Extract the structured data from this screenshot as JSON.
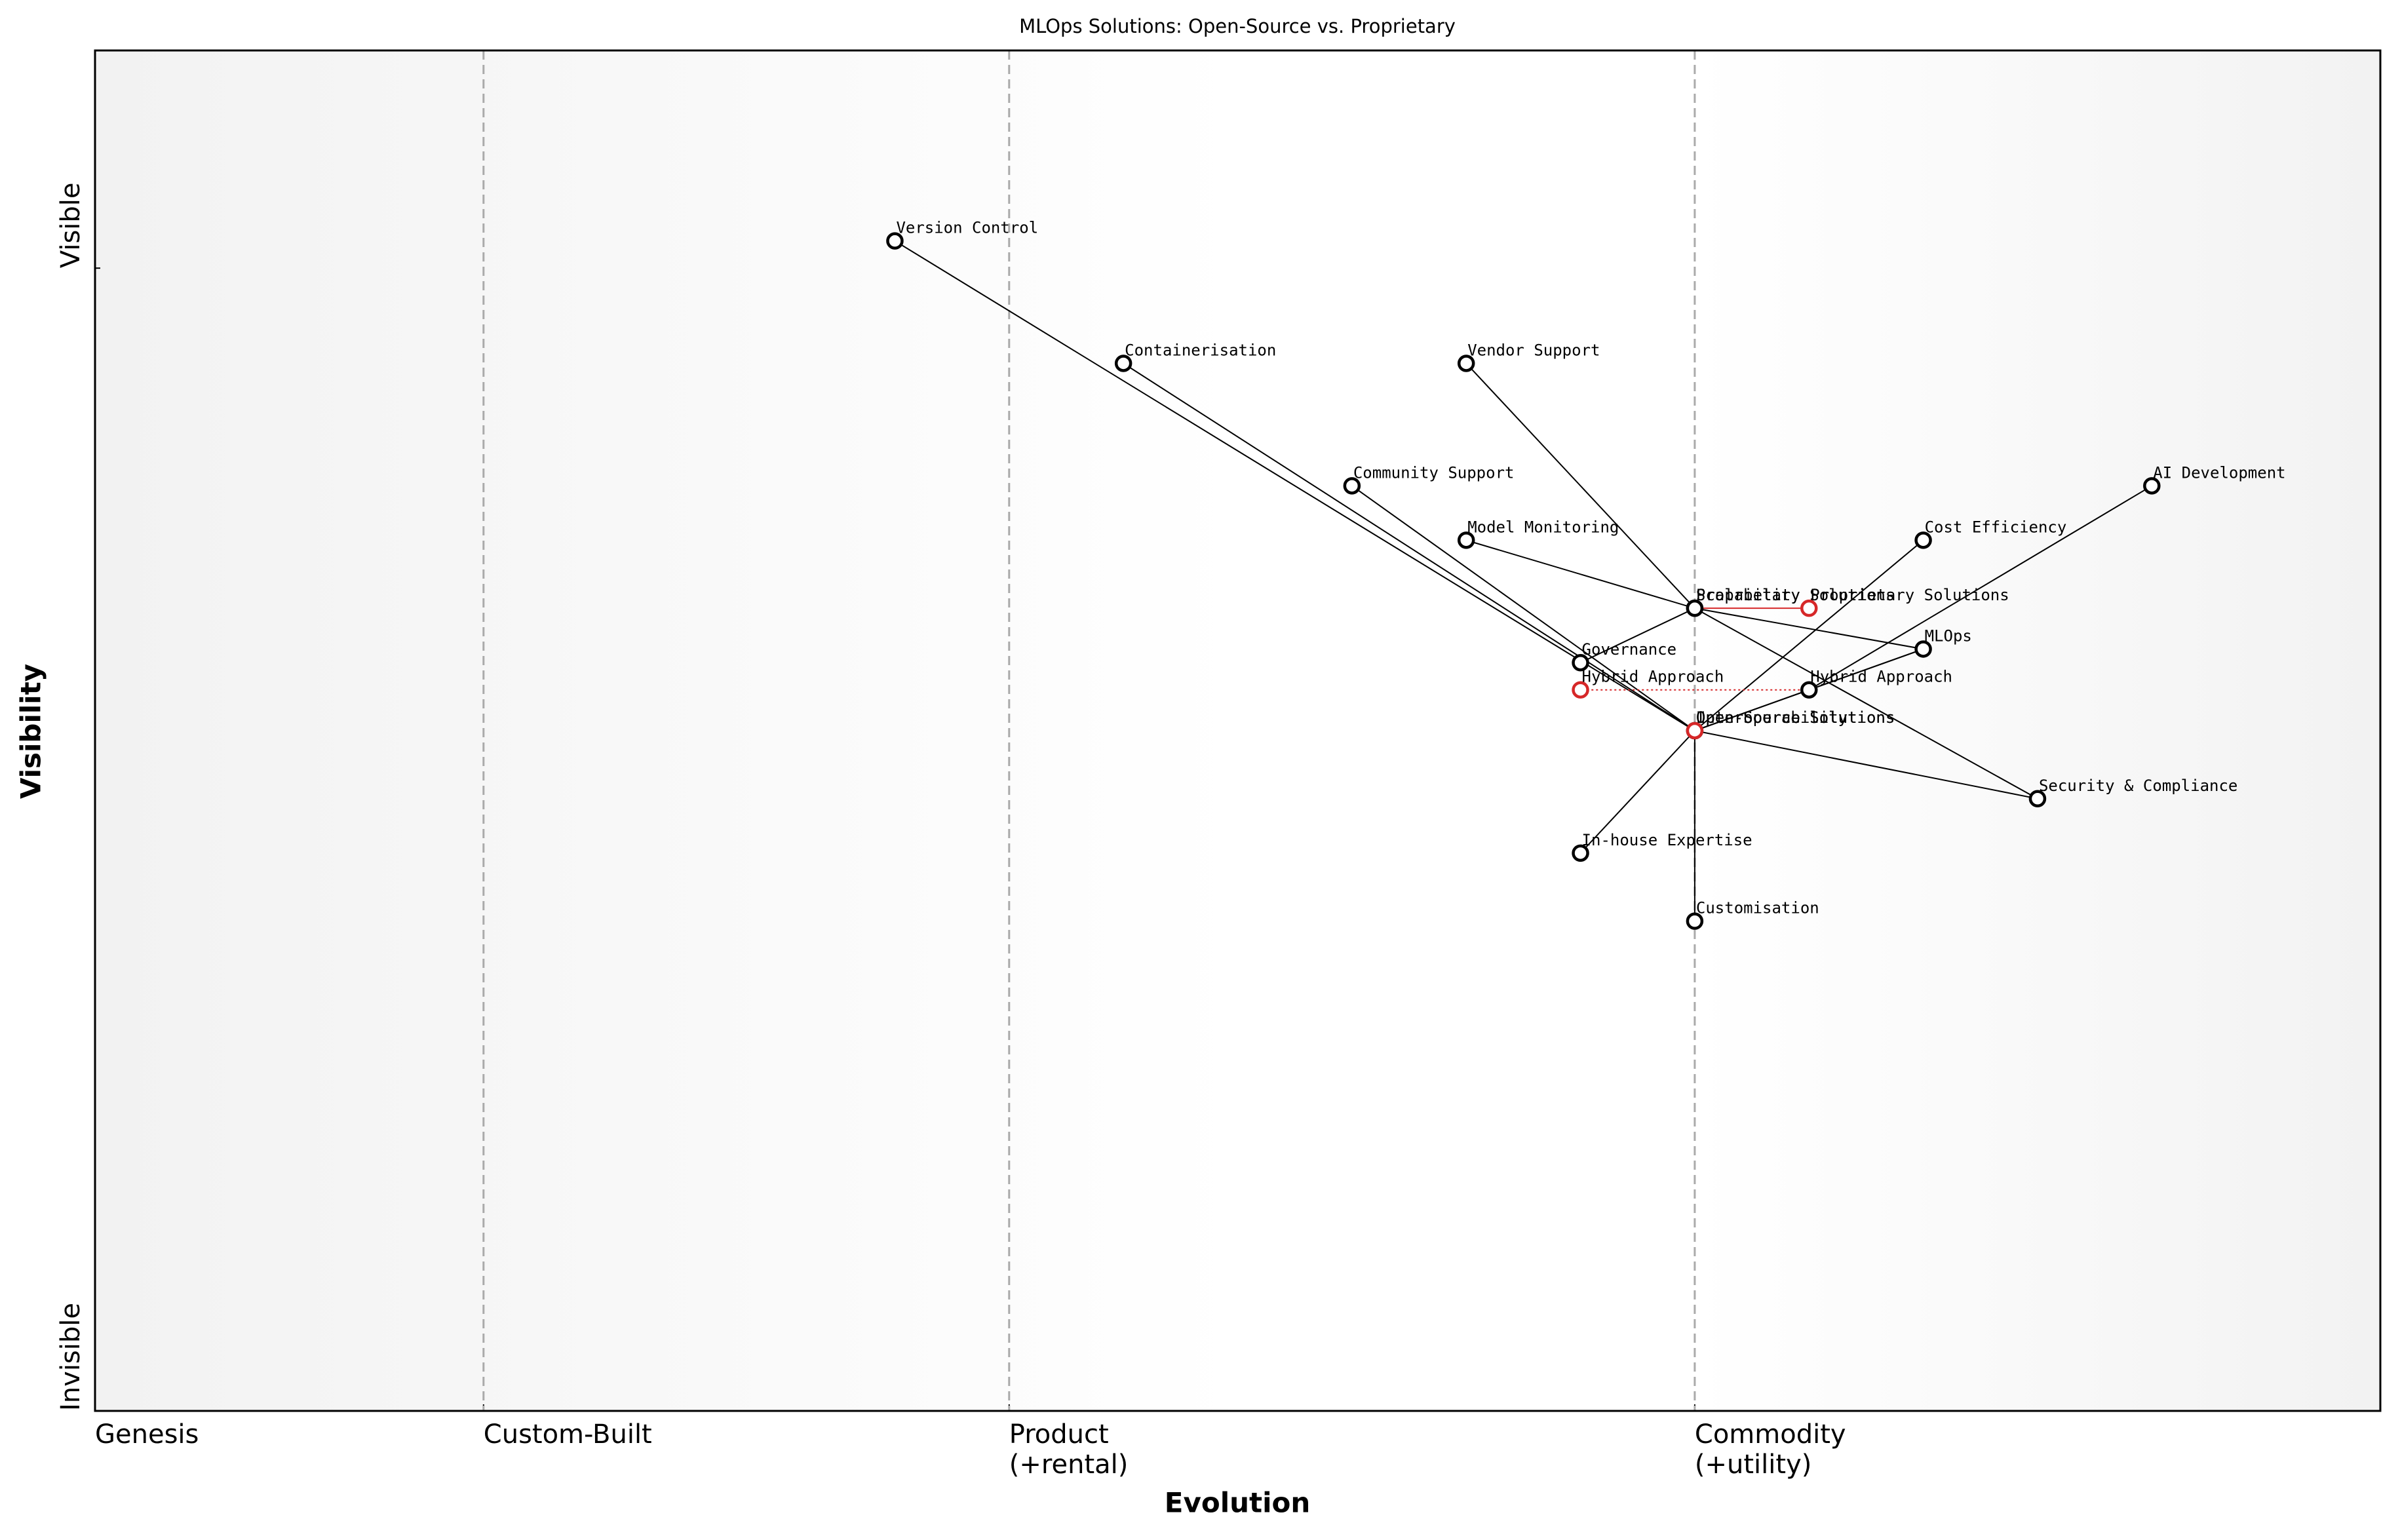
{
  "chart_data": {
    "type": "wardley",
    "title": "MLOps Solutions: Open-Source vs. Proprietary",
    "x_label": "Evolution",
    "y_label": "Visibility",
    "xlim": [
      0,
      1
    ],
    "ylim": [
      0,
      1
    ],
    "xticks": [
      {
        "value": 0,
        "label": "Genesis"
      },
      {
        "value": 0.17,
        "label": "Custom-Built"
      },
      {
        "value": 0.4,
        "label": "Product\n(+rental)"
      },
      {
        "value": 0.7,
        "label": "Commodity\n(+utility)"
      }
    ],
    "yticks": [
      {
        "value": 0,
        "label": "Invisible"
      },
      {
        "value": 0.84,
        "label": "Visible"
      }
    ],
    "grid": true,
    "color": "#000000",
    "evolved_color": "#d62728",
    "components": [
      {
        "name": "Version Control",
        "x": 0.35,
        "y": 0.86
      },
      {
        "name": "Containerisation",
        "x": 0.45,
        "y": 0.77
      },
      {
        "name": "Vendor Support",
        "x": 0.6,
        "y": 0.77
      },
      {
        "name": "Community Support",
        "x": 0.55,
        "y": 0.68
      },
      {
        "name": "AI Development",
        "x": 0.9,
        "y": 0.68
      },
      {
        "name": "Model Monitoring",
        "x": 0.6,
        "y": 0.64
      },
      {
        "name": "Cost Efficiency",
        "x": 0.8,
        "y": 0.64
      },
      {
        "name": "Proprietary Solutions",
        "x": 0.7,
        "y": 0.59
      },
      {
        "name": "Scalability",
        "x": 0.7,
        "y": 0.59
      },
      {
        "name": "MLOps",
        "x": 0.8,
        "y": 0.56
      },
      {
        "name": "Governance",
        "x": 0.65,
        "y": 0.55
      },
      {
        "name": "Hybrid Approach",
        "x": 0.75,
        "y": 0.53
      },
      {
        "name": "Interoperability",
        "x": 0.7,
        "y": 0.5
      },
      {
        "name": "Open-Source Solutions",
        "x": 0.7,
        "y": 0.5
      },
      {
        "name": "Security & Compliance",
        "x": 0.85,
        "y": 0.45
      },
      {
        "name": "In-house Expertise",
        "x": 0.65,
        "y": 0.41
      },
      {
        "name": "Customisation",
        "x": 0.7,
        "y": 0.36
      }
    ],
    "evolutions": [
      {
        "name": "Proprietary Solutions",
        "x": 0.75,
        "line": "solid"
      },
      {
        "name": "Hybrid Approach",
        "x": 0.65,
        "line": "dotted"
      },
      {
        "name": "Open-Source Solutions",
        "x": 0.7,
        "line": "none"
      }
    ],
    "links": [
      [
        "Version Control",
        "Open-Source Solutions"
      ],
      [
        "Containerisation",
        "Open-Source Solutions"
      ],
      [
        "Community Support",
        "Open-Source Solutions"
      ],
      [
        "Vendor Support",
        "Proprietary Solutions"
      ],
      [
        "Model Monitoring",
        "Proprietary Solutions"
      ],
      [
        "Proprietary Solutions",
        "MLOps"
      ],
      [
        "Proprietary Solutions",
        "Governance"
      ],
      [
        "Proprietary Solutions",
        "Security & Compliance"
      ],
      [
        "AI Development",
        "Hybrid Approach"
      ],
      [
        "Cost Efficiency",
        "Open-Source Solutions"
      ],
      [
        "MLOps",
        "Open-Source Solutions"
      ],
      [
        "MLOps",
        "Hybrid Approach"
      ],
      [
        "Hybrid Approach",
        "Open-Source Solutions"
      ],
      [
        "Open-Source Solutions",
        "Security & Compliance"
      ],
      [
        "Open-Source Solutions",
        "In-house Expertise"
      ],
      [
        "Open-Source Solutions",
        "Customisation"
      ]
    ]
  }
}
